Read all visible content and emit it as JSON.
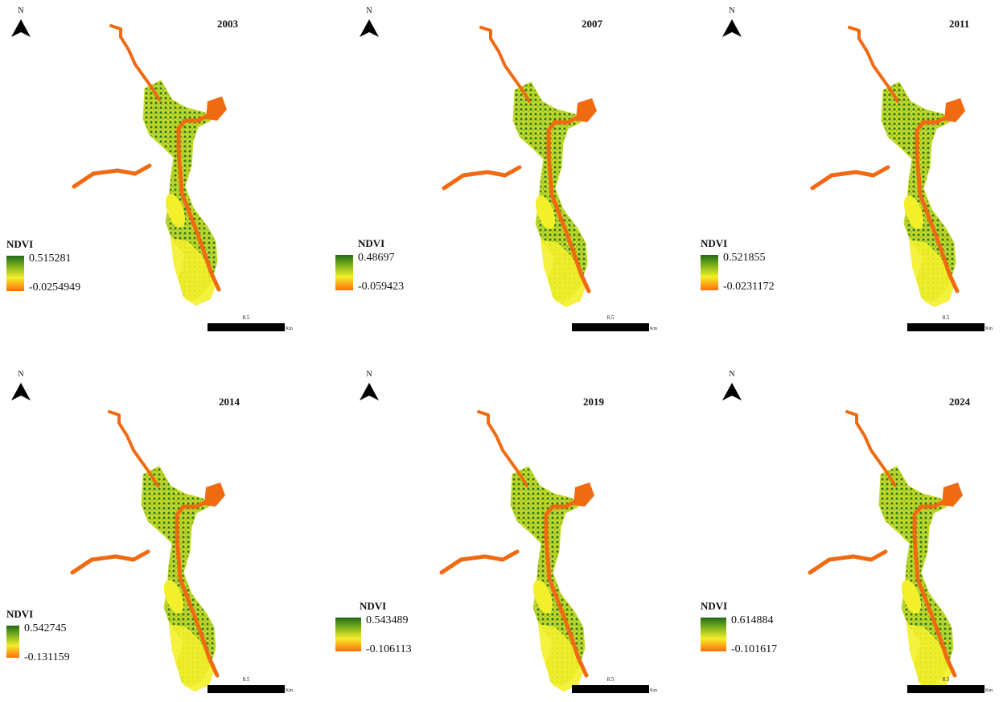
{
  "north_label": "N",
  "legend_title": "NDVI",
  "scale_unit": "Km",
  "colors": {
    "ramp_high": "#1f6a16",
    "ramp_mid": "#f3ef2a",
    "ramp_low": "#ff6d0a",
    "river": "#f06a12",
    "veg_dark": "#2f7a1c",
    "veg_light": "#c9dc2c"
  },
  "panels": [
    {
      "year": "2003",
      "ndvi_max": "0.515281",
      "ndvi_min": "-0.0254949",
      "scale_value": "8.5"
    },
    {
      "year": "2007",
      "ndvi_max": "0.48697",
      "ndvi_min": "-0.059423",
      "scale_value": "8.5"
    },
    {
      "year": "2011",
      "ndvi_max": "0.521855",
      "ndvi_min": "-0.0231172",
      "scale_value": "8.5"
    },
    {
      "year": "2014",
      "ndvi_max": "0.542745",
      "ndvi_min": "-0.131159",
      "scale_value": "8.5"
    },
    {
      "year": "2019",
      "ndvi_max": "0.543489",
      "ndvi_min": "-0.106113",
      "scale_value": "8.5"
    },
    {
      "year": "2024",
      "ndvi_max": "0.614884",
      "ndvi_min": "-0.101617",
      "scale_value": "8.5"
    }
  ]
}
